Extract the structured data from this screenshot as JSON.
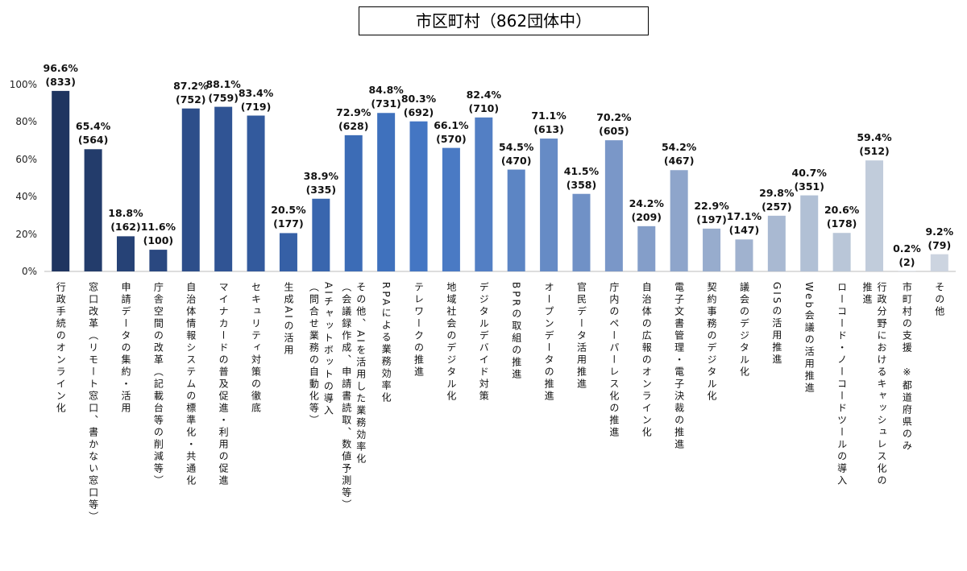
{
  "chart_data": {
    "type": "bar",
    "title": "市区町村（862団体中）",
    "categories": [
      "行政手続のオンライン化",
      "窓口改革（リモート窓口、書かない窓口等）",
      "申請データの集約・活用",
      "庁舎空間の改革（記載台等の削減等）",
      "自治体情報システムの標準化・共通化",
      "マイナカードの普及促進・利用の促進",
      "セキュリティ対策の徹底",
      "生成AIの活用",
      "AIチャットボットの導入\n（問合せ業務の自動化等）",
      "その他、AIを活用した業務効率化\n（会議録作成、申請書読取、数値予測等）",
      "RPAによる業務効率化",
      "テレワークの推進",
      "地域社会のデジタル化",
      "デジタルデバイド対策",
      "BPRの取組の推進",
      "オープンデータの推進",
      "官民データ活用推進",
      "庁内のペーパーレス化の推進",
      "自治体の広報のオンライン化",
      "電子文書管理・電子決裁の推進",
      "契約事務のデジタル化",
      "議会のデジタル化",
      "GISの活用推進",
      "Web会議の活用推進",
      "ローコード・ノーコードツールの導入",
      "行政分野におけるキャッシュレス化の\n推進",
      "市町村の支援　※都道府県のみ",
      "その他"
    ],
    "values": [
      96.6,
      65.4,
      18.8,
      11.6,
      87.2,
      88.1,
      83.4,
      20.5,
      38.9,
      72.9,
      84.8,
      80.3,
      66.1,
      82.4,
      54.5,
      71.1,
      41.5,
      70.2,
      24.2,
      54.2,
      22.9,
      17.1,
      29.8,
      40.7,
      20.6,
      59.4,
      0.2,
      9.2
    ],
    "value_labels": [
      "96.6%\n(833)",
      "65.4%\n(564)",
      "18.8%\n(162)",
      "11.6%\n(100)",
      "87.2%\n(752)",
      "88.1%\n(759)",
      "83.4%\n(719)",
      "20.5%\n(177)",
      "38.9%\n(335)",
      "72.9%\n(628)",
      "84.8%\n(731)",
      "80.3%\n(692)",
      "66.1%\n(570)",
      "82.4%\n(710)",
      "54.5%\n(470)",
      "71.1%\n(613)",
      "41.5%\n(358)",
      "70.2%\n(605)",
      "24.2%\n(209)",
      "54.2%\n(467)",
      "22.9%\n(197)",
      "17.1%\n(147)",
      "29.8%\n(257)",
      "40.7%\n(351)",
      "20.6%\n(178)",
      "59.4%\n(512)",
      "0.2%\n(2)",
      "9.2%\n(79)"
    ],
    "colors": [
      "#1f3560",
      "#233c6b",
      "#264276",
      "#2a4880",
      "#2d4e8a",
      "#305494",
      "#335a9d",
      "#3660a6",
      "#3966ae",
      "#3c6cb6",
      "#3f71bd",
      "#4476c3",
      "#4a7ac4",
      "#537fc4",
      "#5c85c4",
      "#668bc5",
      "#7091c6",
      "#7a97c8",
      "#849ec9",
      "#8ea5cb",
      "#97accd",
      "#a0b2cf",
      "#a9b9d2",
      "#b1c0d5",
      "#b9c6d8",
      "#c1ccdb",
      "#c7d0de",
      "#ccd4e0"
    ],
    "ylim": [
      0,
      100
    ],
    "yticks": [
      {
        "value": 0,
        "label": "0%"
      },
      {
        "value": 20,
        "label": "20%"
      },
      {
        "value": 40,
        "label": "40%"
      },
      {
        "value": 60,
        "label": "60%"
      },
      {
        "value": 80,
        "label": "80%"
      },
      {
        "value": 100,
        "label": "100%"
      }
    ],
    "grid": false
  }
}
